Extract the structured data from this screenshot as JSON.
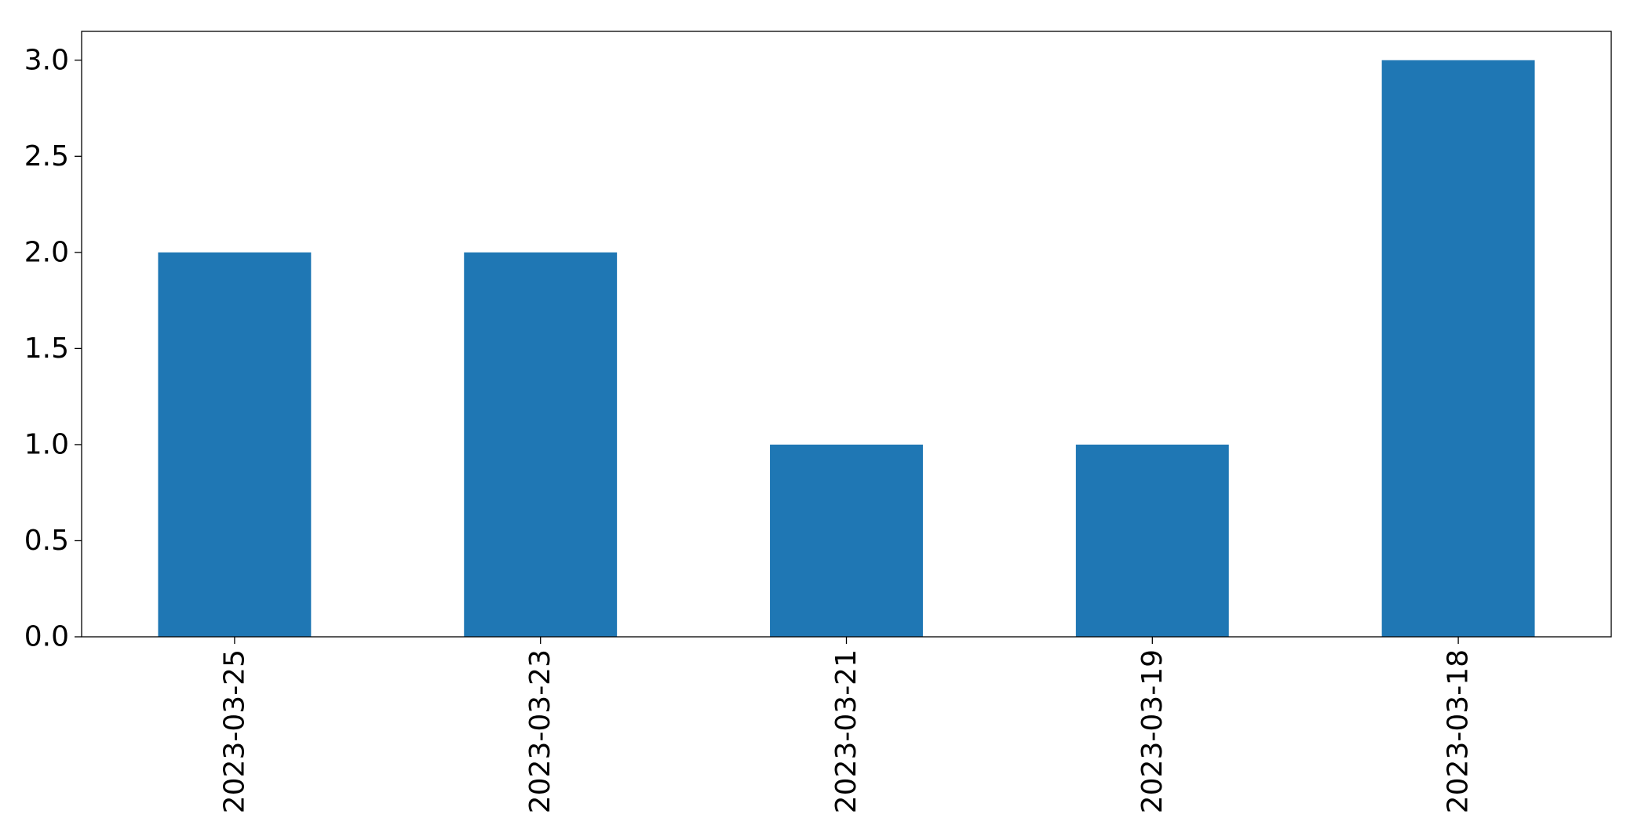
{
  "chart_data": {
    "type": "bar",
    "categories": [
      "2023-03-25",
      "2023-03-23",
      "2023-03-21",
      "2023-03-19",
      "2023-03-18"
    ],
    "values": [
      2,
      2,
      1,
      1,
      3
    ],
    "title": "",
    "xlabel": "",
    "ylabel": "",
    "ylim": [
      0,
      3.15
    ],
    "yticks": [
      0.0,
      0.5,
      1.0,
      1.5,
      2.0,
      2.5,
      3.0
    ],
    "ytick_labels": [
      "0.0",
      "0.5",
      "1.0",
      "1.5",
      "2.0",
      "2.5",
      "3.0"
    ],
    "bar_color": "#1f77b4",
    "grid": false,
    "legend": "none",
    "xtick_rotation": "vertical"
  }
}
